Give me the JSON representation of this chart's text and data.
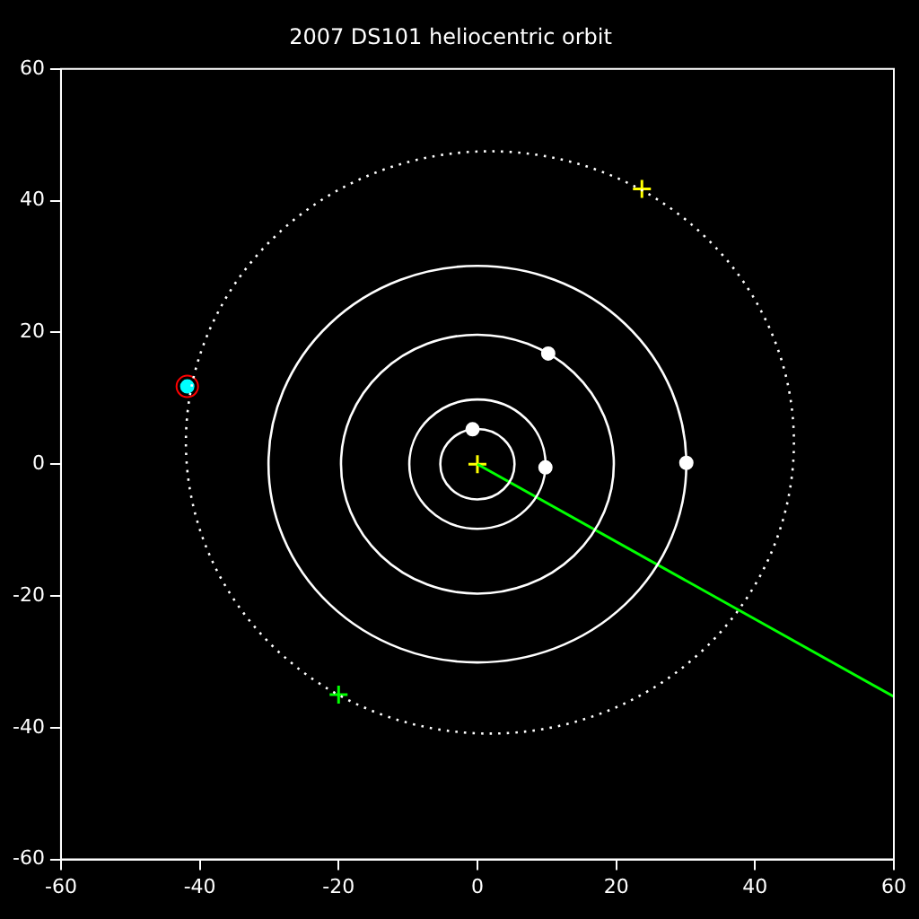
{
  "chart_data": {
    "type": "scatter",
    "title": "2007 DS101 heliocentric orbit",
    "xlim": [
      -60,
      60
    ],
    "ylim": [
      -60,
      60
    ],
    "xticks": [
      -60,
      -40,
      -20,
      0,
      20,
      40,
      60
    ],
    "yticks": [
      -60,
      -40,
      -20,
      0,
      20,
      40,
      60
    ],
    "grid": false,
    "legend": false,
    "series": [
      {
        "type": "line",
        "color": "#00ff00",
        "line_style": "solid",
        "x": [
          0,
          60
        ],
        "values": [
          0,
          -35.3
        ]
      },
      {
        "type": "scatter",
        "color": "#ffffff",
        "marker": "circle",
        "x": [
          -0.7,
          9.8,
          10.2,
          30.1
        ],
        "values": [
          5.3,
          -0.5,
          16.8,
          0.2
        ]
      },
      {
        "type": "scatter",
        "color": "#ff0000",
        "marker": "circle",
        "x": [
          -41.8
        ],
        "values": [
          11.8
        ]
      },
      {
        "type": "scatter",
        "color": "#00ffff",
        "marker": "circle",
        "x": [
          -41.8
        ],
        "values": [
          11.8
        ]
      },
      {
        "type": "scatter",
        "color": "#ffff00",
        "marker": "cross",
        "x": [
          0
        ],
        "values": [
          0
        ]
      },
      {
        "type": "scatter",
        "color": "#ffff00",
        "marker": "cross",
        "x": [
          23.7
        ],
        "values": [
          41.8
        ]
      },
      {
        "type": "scatter",
        "color": "#00ff00",
        "marker": "cross",
        "x": [
          -20.0
        ],
        "values": [
          -35.0
        ]
      }
    ]
  }
}
